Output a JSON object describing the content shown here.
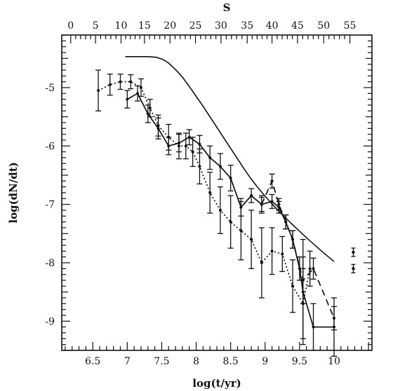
{
  "chart_data": {
    "type": "line",
    "title": "",
    "xlabel": "log(t/yr)",
    "ylabel": "log(dN/dt)",
    "top_axis_label": "S",
    "xlim": [
      6.05,
      10.55
    ],
    "ylim": [
      -9.5,
      -4.1
    ],
    "x_ticks": [
      6.5,
      7,
      7.5,
      8,
      8.5,
      9,
      9.5,
      10
    ],
    "x_tick_labels": [
      "6.5",
      "7",
      "7.5",
      "8",
      "8.5",
      "9",
      "9.5",
      "10"
    ],
    "y_ticks": [
      -5,
      -6,
      -7,
      -8,
      -9
    ],
    "y_tick_labels": [
      "-5",
      "-6",
      "-7",
      "-8",
      "-9"
    ],
    "top_ticks_x": [
      6.18,
      6.54,
      6.91,
      7.25,
      7.62,
      7.99,
      8.36,
      8.74,
      9.1,
      9.47,
      9.85,
      10.23
    ],
    "top_tick_labels": [
      "0",
      "5",
      "10",
      "15",
      "20",
      "25",
      "30",
      "35",
      "40",
      "45",
      "50",
      "55"
    ],
    "series": [
      {
        "style": "solid-thin",
        "x": [
          6.97,
          7.15,
          7.3,
          7.42,
          7.52,
          7.6,
          7.7,
          7.8,
          7.9,
          8.0,
          8.1,
          8.2,
          8.3,
          8.4,
          8.5,
          8.6,
          8.7,
          8.8,
          8.9,
          9.0,
          9.2,
          9.4,
          9.6,
          9.8,
          10.0
        ],
        "y": [
          -4.47,
          -4.47,
          -4.47,
          -4.48,
          -4.52,
          -4.58,
          -4.69,
          -4.82,
          -4.98,
          -5.15,
          -5.32,
          -5.5,
          -5.68,
          -5.86,
          -6.04,
          -6.22,
          -6.4,
          -6.57,
          -6.72,
          -6.86,
          -7.12,
          -7.35,
          -7.57,
          -7.78,
          -7.98
        ]
      },
      {
        "style": "dotted",
        "x": [
          6.58,
          6.75,
          6.9,
          7.05,
          7.2,
          7.33,
          7.45,
          7.6,
          7.75,
          7.85,
          7.95,
          8.05,
          8.2,
          8.35,
          8.5,
          8.65,
          8.8,
          8.95,
          9.1,
          9.25,
          9.4,
          9.55,
          9.65
        ],
        "y": [
          -5.05,
          -4.95,
          -4.9,
          -4.9,
          -5.0,
          -5.35,
          -5.65,
          -5.85,
          -6.0,
          -6.0,
          -6.1,
          -6.35,
          -6.8,
          -7.1,
          -7.3,
          -7.45,
          -7.6,
          -8.0,
          -7.8,
          -7.85,
          -8.4,
          -8.7,
          -8.1
        ],
        "err": [
          0.35,
          0.18,
          0.13,
          0.12,
          0.15,
          0.15,
          0.18,
          0.22,
          0.22,
          0.22,
          0.25,
          0.3,
          0.35,
          0.4,
          0.45,
          0.5,
          0.5,
          0.6,
          0.4,
          0.3,
          0.45,
          0.6,
          0.3
        ]
      },
      {
        "style": "solid",
        "x": [
          7.0,
          7.15,
          7.3,
          7.45,
          7.6,
          7.75,
          7.9,
          8.05,
          8.2,
          8.35,
          8.5,
          8.65,
          8.8,
          8.95,
          9.1,
          9.2,
          9.3,
          9.4,
          9.5,
          9.55,
          9.7,
          10.0
        ],
        "y": [
          -5.2,
          -5.1,
          -5.45,
          -5.7,
          -6.0,
          -5.95,
          -5.85,
          -5.97,
          -6.2,
          -6.35,
          -6.55,
          -7.05,
          -6.85,
          -7.0,
          -6.95,
          -7.05,
          -7.3,
          -7.6,
          -8.1,
          -8.5,
          -9.1,
          -9.1
        ],
        "err": [
          0.15,
          0.13,
          0.15,
          0.18,
          0.15,
          0.15,
          0.13,
          0.15,
          0.2,
          0.22,
          0.22,
          0.15,
          0.12,
          0.15,
          0.12,
          0.1,
          0.12,
          0.15,
          0.2,
          0.9,
          0.4,
          0.5
        ]
      },
      {
        "style": "dashed",
        "x": [
          8.95,
          9.1,
          9.2,
          9.3,
          9.4,
          9.55,
          9.7,
          10.0
        ],
        "y": [
          -7.0,
          -6.6,
          -7.0,
          -7.3,
          -7.6,
          -8.3,
          -8.1,
          -8.95
        ],
        "err": [
          0.12,
          0.12,
          0.1,
          0.12,
          0.15,
          0.4,
          0.18,
          0.2
        ]
      }
    ],
    "side_markers": [
      {
        "x": 10.28,
        "y": -7.82
      },
      {
        "x": 10.28,
        "y": -8.1
      }
    ]
  }
}
